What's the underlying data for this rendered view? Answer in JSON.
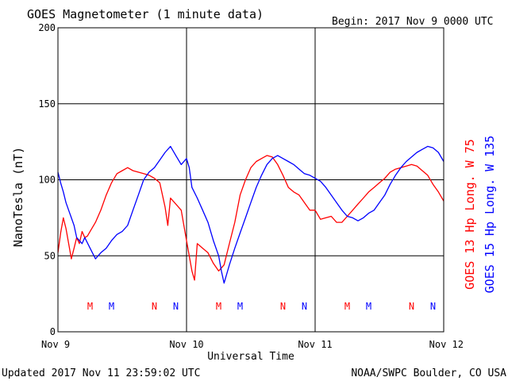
{
  "chart_data": {
    "type": "line",
    "title": "GOES Magnetometer (1 minute data)",
    "begin_label": "Begin:  2017 Nov 9 0000 UTC",
    "ylabel": "NanoTesla (nT)",
    "xlabel": "Universal Time",
    "ylim": [
      0,
      200
    ],
    "y_ticks": [
      "0",
      "50",
      "100",
      "150",
      "200"
    ],
    "xlim_hours": [
      0,
      72
    ],
    "x_ticks": [
      {
        "hour": 0,
        "label": "Nov 9"
      },
      {
        "hour": 24,
        "label": "Nov 10"
      },
      {
        "hour": 48,
        "label": "Nov 11"
      },
      {
        "hour": 72,
        "label": "Nov 12"
      }
    ],
    "grid": true,
    "series": [
      {
        "name": "GOES 13 Hp  Long. W 75",
        "color": "#ff0000",
        "x": [
          0,
          0.5,
          1,
          1.5,
          2,
          2.5,
          3,
          3.5,
          4,
          4.5,
          5,
          5.5,
          6,
          7,
          8,
          9,
          10,
          11,
          12,
          13,
          14,
          15,
          16,
          17,
          18,
          19,
          20,
          20.5,
          21,
          22,
          23,
          24,
          25,
          25.5,
          26,
          27,
          28,
          29,
          30,
          31,
          32,
          33,
          34,
          35,
          36,
          37,
          38,
          39,
          40,
          41,
          42,
          43,
          44,
          45,
          46,
          47,
          48,
          49,
          50,
          51,
          52,
          53,
          54,
          55,
          56,
          57,
          58,
          59,
          60,
          61,
          62,
          63,
          64,
          65,
          66,
          67,
          68,
          69,
          70,
          71,
          72
        ],
        "values": [
          52,
          65,
          75,
          68,
          58,
          48,
          55,
          62,
          58,
          66,
          62,
          63,
          66,
          72,
          80,
          90,
          98,
          104,
          106,
          108,
          106,
          105,
          104,
          103,
          101,
          98,
          82,
          70,
          88,
          84,
          80,
          60,
          40,
          34,
          58,
          55,
          52,
          45,
          40,
          44,
          58,
          72,
          90,
          100,
          108,
          112,
          114,
          116,
          115,
          110,
          103,
          95,
          92,
          90,
          85,
          80,
          80,
          74,
          75,
          76,
          72,
          72,
          76,
          80,
          84,
          88,
          92,
          95,
          98,
          101,
          105,
          107,
          108,
          109,
          110,
          109,
          106,
          103,
          97,
          92,
          86
        ]
      },
      {
        "name": "GOES 15 Hp  Long. W 135",
        "color": "#0000ff",
        "x": [
          0,
          0.5,
          1,
          1.5,
          2,
          2.5,
          3,
          3.5,
          4,
          4.5,
          5,
          6,
          7,
          8,
          9,
          10,
          11,
          12,
          13,
          14,
          15,
          16,
          17,
          18,
          19,
          20,
          21,
          22,
          23,
          24,
          24.5,
          25,
          26,
          27,
          28,
          29,
          30,
          30.5,
          31,
          32,
          33,
          34,
          35,
          36,
          37,
          38,
          39,
          40,
          41,
          42,
          43,
          44,
          45,
          46,
          47,
          48,
          49,
          50,
          51,
          52,
          53,
          54,
          55,
          56,
          57,
          58,
          59,
          60,
          61,
          62,
          63,
          64,
          65,
          66,
          67,
          68,
          69,
          70,
          71,
          72
        ],
        "values": [
          105,
          98,
          92,
          85,
          80,
          75,
          70,
          62,
          60,
          58,
          62,
          55,
          48,
          52,
          55,
          60,
          64,
          66,
          70,
          80,
          90,
          100,
          105,
          108,
          113,
          118,
          122,
          116,
          110,
          114,
          108,
          95,
          88,
          80,
          72,
          60,
          50,
          40,
          32,
          44,
          55,
          65,
          75,
          85,
          95,
          103,
          110,
          114,
          116,
          114,
          112,
          110,
          107,
          104,
          103,
          101,
          99,
          95,
          90,
          85,
          80,
          76,
          75,
          73,
          75,
          78,
          80,
          85,
          90,
          97,
          103,
          108,
          112,
          115,
          118,
          120,
          122,
          121,
          118,
          112
        ]
      }
    ],
    "event_markers": [
      {
        "hour": 6,
        "label": "M",
        "color": "#ff0000"
      },
      {
        "hour": 10,
        "label": "M",
        "color": "#0000ff"
      },
      {
        "hour": 18,
        "label": "N",
        "color": "#ff0000"
      },
      {
        "hour": 22,
        "label": "N",
        "color": "#0000ff"
      },
      {
        "hour": 30,
        "label": "M",
        "color": "#ff0000"
      },
      {
        "hour": 34,
        "label": "M",
        "color": "#0000ff"
      },
      {
        "hour": 42,
        "label": "N",
        "color": "#ff0000"
      },
      {
        "hour": 46,
        "label": "N",
        "color": "#0000ff"
      },
      {
        "hour": 54,
        "label": "M",
        "color": "#ff0000"
      },
      {
        "hour": 58,
        "label": "M",
        "color": "#0000ff"
      },
      {
        "hour": 66,
        "label": "N",
        "color": "#ff0000"
      },
      {
        "hour": 70,
        "label": "N",
        "color": "#0000ff"
      }
    ]
  },
  "footer": {
    "updated": "Updated 2017 Nov 11 23:59:02 UTC",
    "credit": "NOAA/SWPC Boulder, CO USA"
  }
}
